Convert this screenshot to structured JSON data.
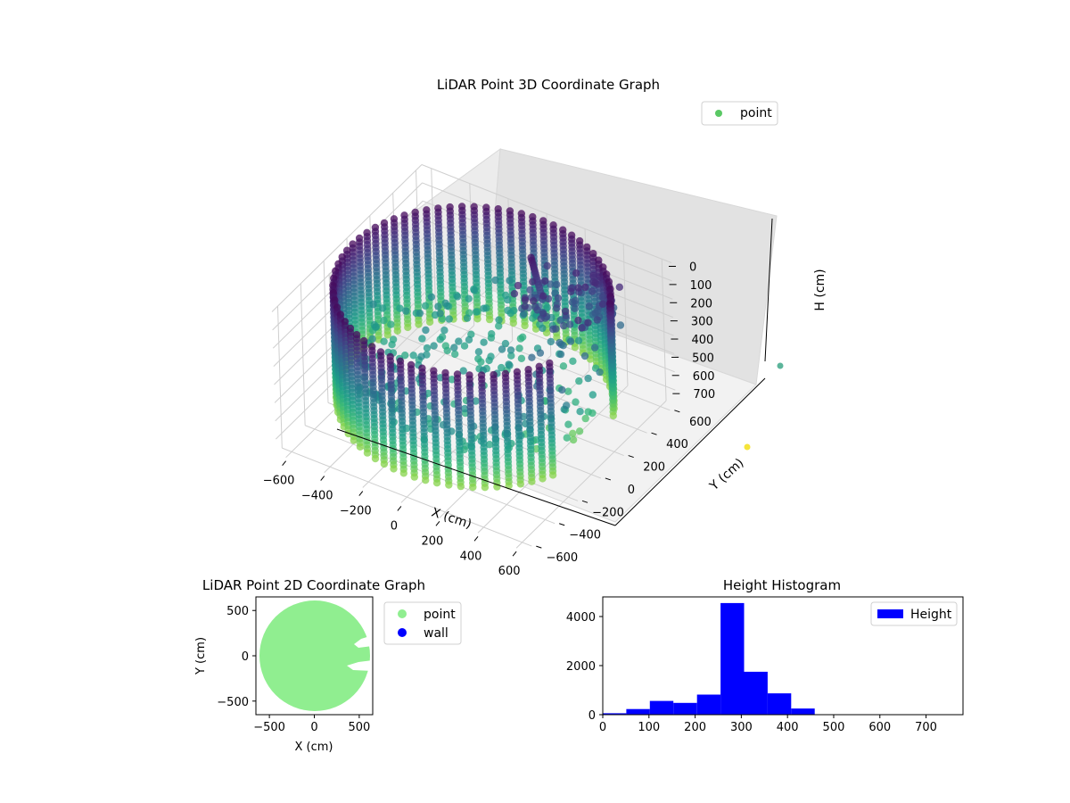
{
  "chart_data": [
    {
      "type": "scatter3d",
      "title": "LiDAR Point 3D Coordinate Graph",
      "xlabel": "X (cm)",
      "ylabel": "Y (cm)",
      "zlabel": "H (cm)",
      "xlim": [
        -650,
        650
      ],
      "ylim": [
        -650,
        650
      ],
      "zlim": [
        780,
        0
      ],
      "z_inverted": true,
      "xticks": [
        "−600",
        "−400",
        "−200",
        "0",
        "200",
        "400",
        "600"
      ],
      "yticks": [
        "−600",
        "−400",
        "−200",
        "0",
        "200",
        "400",
        "600"
      ],
      "zticks": [
        "0",
        "100",
        "200",
        "300",
        "400",
        "500",
        "600",
        "700"
      ],
      "legend": [
        {
          "label": "point",
          "color": "#5ac864"
        }
      ],
      "legend_position": "top-right",
      "colormap": "viridis",
      "grid": true,
      "wall_radius": 620,
      "wall_height_range": [
        20,
        640
      ]
    },
    {
      "type": "scatter",
      "title": "LiDAR Point 2D Coordinate Graph",
      "xlabel": "X (cm)",
      "ylabel": "Y (cm)",
      "xlim": [
        -650,
        650
      ],
      "ylim": [
        -650,
        650
      ],
      "xticks": [
        "−500",
        "0",
        "500"
      ],
      "yticks": [
        "−500",
        "0",
        "500"
      ],
      "series": [
        {
          "name": "point",
          "color": "#90ee90"
        },
        {
          "name": "wall",
          "color": "#0000ff"
        }
      ],
      "legend_position": "outside-right",
      "grid": false
    },
    {
      "type": "bar",
      "title": "Height Histogram",
      "xlabel": "",
      "ylabel": "",
      "xlim": [
        0,
        780
      ],
      "ylim": [
        0,
        4800
      ],
      "xticks": [
        "0",
        "100",
        "200",
        "300",
        "400",
        "500",
        "600",
        "700"
      ],
      "yticks": [
        "0",
        "2000",
        "4000"
      ],
      "bin_edges": [
        0,
        51,
        102,
        153,
        204,
        255,
        306,
        357,
        408,
        459,
        510,
        561,
        612,
        663,
        714,
        765
      ],
      "values": [
        60,
        230,
        560,
        480,
        820,
        4550,
        1750,
        870,
        250,
        15,
        10,
        8,
        5,
        5,
        3
      ],
      "series": [
        {
          "name": "Height",
          "color": "#0000ff"
        }
      ],
      "legend_position": "top-right",
      "grid": false
    }
  ]
}
